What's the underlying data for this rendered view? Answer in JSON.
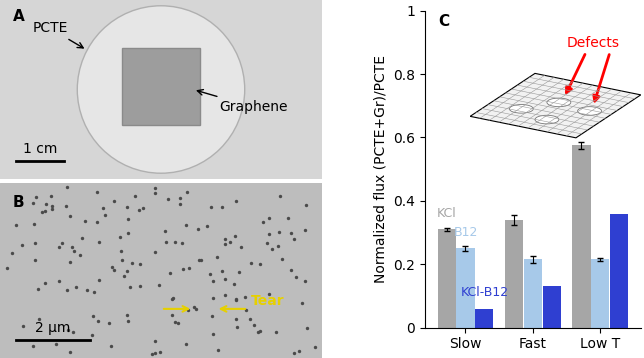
{
  "chart_data": {
    "type": "bar",
    "categories": [
      "Slow",
      "Fast",
      "Low T"
    ],
    "series": [
      {
        "name": "KCl",
        "color": "#a6a6a6",
        "values": [
          0.31,
          0.34,
          0.575
        ],
        "errors": [
          0.005,
          0.015,
          0.012
        ]
      },
      {
        "name": "B12",
        "color": "#a7c9e9",
        "values": [
          0.25,
          0.215,
          0.215
        ],
        "errors": [
          0.008,
          0.01,
          0.004
        ]
      },
      {
        "name": "KCl-B12",
        "color": "#2f3fd1",
        "values": [
          0.06,
          0.13,
          0.36
        ]
      }
    ],
    "y_label": "Normalized flux (PCTE+Gr)/PCTE",
    "ylim": [
      0,
      1
    ],
    "yticks": [
      0,
      0.2,
      0.4,
      0.6,
      0.8,
      1
    ],
    "annotations": [
      "C",
      "Defects"
    ]
  },
  "images": [
    {
      "label": "A",
      "texts": [
        "PCTE",
        "Graphene"
      ],
      "scale_bar": "1 cm"
    },
    {
      "label": "B",
      "texts": [
        "Tear"
      ],
      "scale_bar": "2 µm"
    }
  ]
}
